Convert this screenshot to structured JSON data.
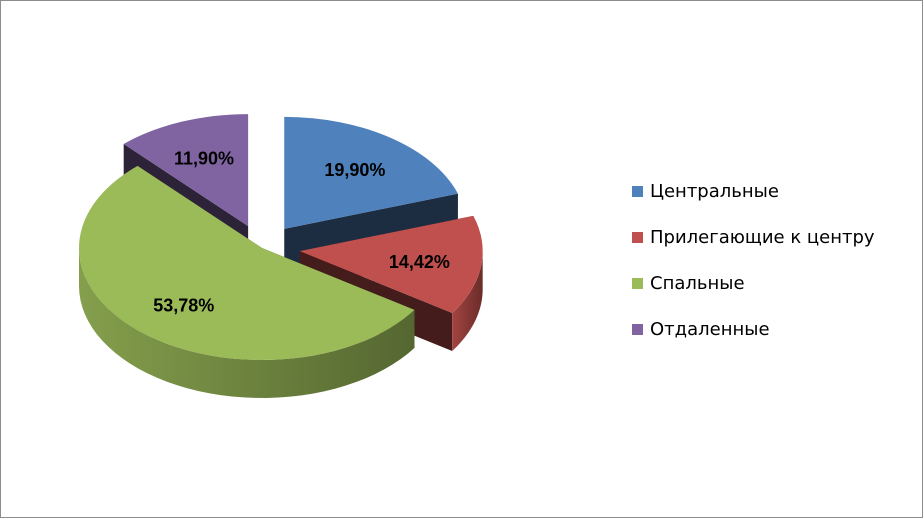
{
  "chart_data": {
    "type": "pie",
    "style": "3d-exploded",
    "title": "",
    "legend_position": "right",
    "slices": [
      {
        "name": "Центральные",
        "value": 19.9,
        "label": "19,90%",
        "color": "#4f81bd",
        "exploded": true
      },
      {
        "name": "Прилегающие к центру",
        "value": 14.42,
        "label": "14,42%",
        "color": "#c0504d",
        "exploded": true
      },
      {
        "name": "Спальные",
        "value": 53.78,
        "label": "53,78%",
        "color": "#9bbb59",
        "exploded": false
      },
      {
        "name": "Отдаленные",
        "value": 11.9,
        "label": "11,90%",
        "color": "#8064a2",
        "exploded": true
      }
    ]
  }
}
